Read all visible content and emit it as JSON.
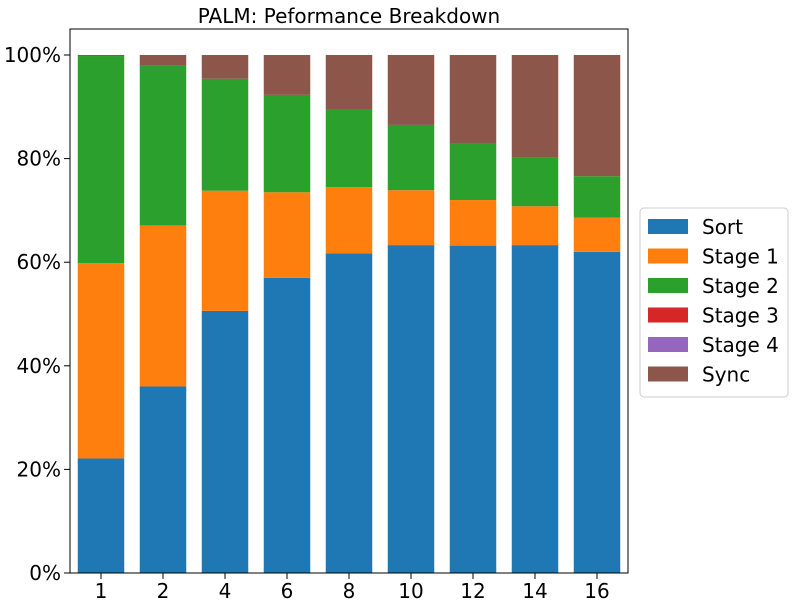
{
  "chart_data": {
    "type": "bar",
    "stacked": true,
    "title": "PALM: Peformance Breakdown",
    "xlabel": "",
    "ylabel": "",
    "categories": [
      "1",
      "2",
      "4",
      "6",
      "8",
      "10",
      "12",
      "14",
      "16"
    ],
    "ylim": [
      0,
      100
    ],
    "yticks": [
      0,
      20,
      40,
      60,
      80,
      100
    ],
    "ytick_labels": [
      "0%",
      "20%",
      "40%",
      "60%",
      "80%",
      "100%"
    ],
    "grid": false,
    "legend_position": "right",
    "series": [
      {
        "name": "Sort",
        "color": "#1f77b4",
        "values": [
          22.1,
          36.0,
          50.6,
          57.0,
          61.7,
          63.3,
          63.2,
          63.3,
          62.0
        ]
      },
      {
        "name": "Stage 1",
        "color": "#ff7f0e",
        "values": [
          37.7,
          31.1,
          23.2,
          16.5,
          12.8,
          10.6,
          8.8,
          7.5,
          6.6
        ]
      },
      {
        "name": "Stage 2",
        "color": "#2ca02c",
        "values": [
          40.0,
          30.8,
          21.6,
          18.8,
          14.9,
          12.6,
          10.9,
          9.5,
          8.0
        ]
      },
      {
        "name": "Stage 3",
        "color": "#d62728",
        "values": [
          0,
          0,
          0,
          0,
          0,
          0,
          0,
          0,
          0
        ]
      },
      {
        "name": "Stage 4",
        "color": "#9467bd",
        "values": [
          0,
          0,
          0,
          0,
          0,
          0,
          0,
          0,
          0
        ]
      },
      {
        "name": "Sync",
        "color": "#8c564b",
        "values": [
          0.2,
          2.1,
          4.6,
          7.7,
          10.6,
          13.5,
          17.1,
          19.7,
          23.4
        ]
      }
    ]
  }
}
